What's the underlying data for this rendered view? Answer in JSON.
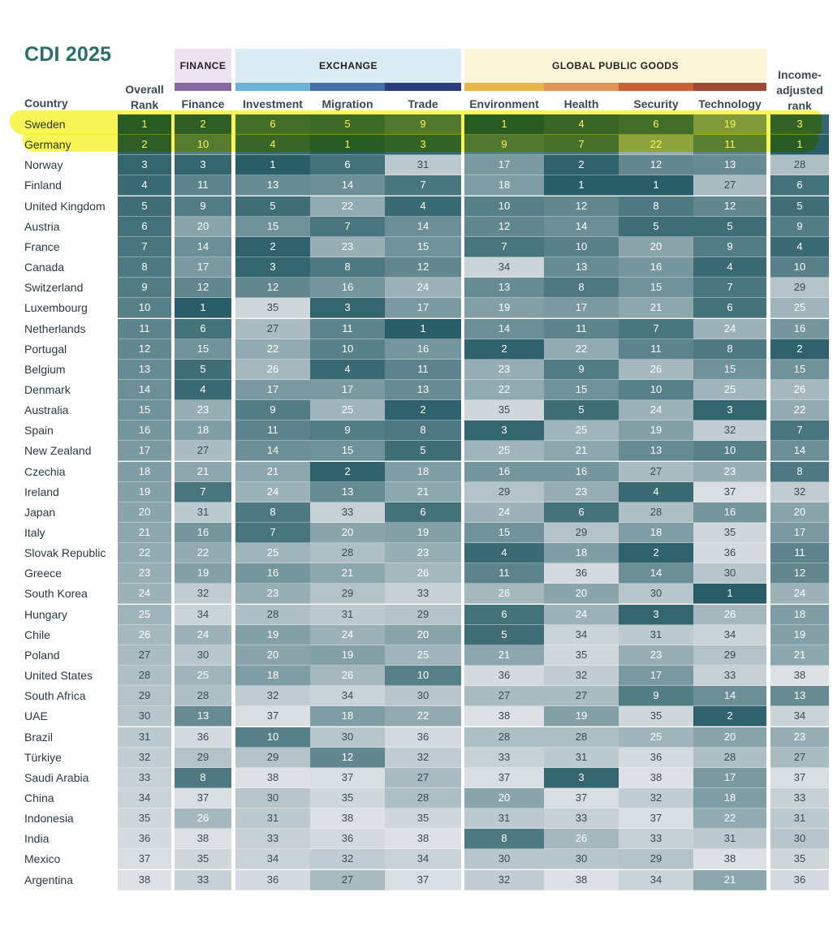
{
  "title": "CDI 2025",
  "groups": [
    {
      "label": "FINANCE",
      "bg": "#ede2ef",
      "strip": "#866a9f"
    },
    {
      "label": "EXCHANGE",
      "bg": "#dbecf4"
    },
    {
      "label": "GLOBAL PUBLIC GOODS",
      "bg": "#fdf5d8"
    }
  ],
  "strip_colors": {
    "investment": "#6db1d6",
    "migration": "#4470a6",
    "trade": "#2b3d7a",
    "environment": "#e5b64e",
    "health": "#dd9458",
    "security": "#c86138",
    "technology": "#9c4a36"
  },
  "country_header": "Country",
  "columns": [
    {
      "key": "overall",
      "label": "Overall Rank"
    },
    {
      "key": "finance",
      "label": "Finance"
    },
    {
      "key": "investment",
      "label": "Investment"
    },
    {
      "key": "migration",
      "label": "Migration"
    },
    {
      "key": "trade",
      "label": "Trade"
    },
    {
      "key": "environment",
      "label": "Environment"
    },
    {
      "key": "health",
      "label": "Health"
    },
    {
      "key": "security",
      "label": "Security"
    },
    {
      "key": "technology",
      "label": "Technology"
    },
    {
      "key": "income",
      "label": "Income-adjusted rank"
    }
  ],
  "rows": [
    {
      "country": "Sweden",
      "ranks": [
        1,
        2,
        6,
        5,
        9,
        1,
        4,
        6,
        19,
        3
      ]
    },
    {
      "country": "Germany",
      "ranks": [
        2,
        10,
        4,
        1,
        3,
        9,
        7,
        22,
        11,
        1
      ]
    },
    {
      "country": "Norway",
      "ranks": [
        3,
        3,
        1,
        6,
        31,
        17,
        2,
        12,
        13,
        28
      ]
    },
    {
      "country": "Finland",
      "ranks": [
        4,
        11,
        13,
        14,
        7,
        18,
        1,
        1,
        27,
        6
      ]
    },
    {
      "country": "United Kingdom",
      "ranks": [
        5,
        9,
        5,
        22,
        4,
        10,
        12,
        8,
        12,
        5
      ]
    },
    {
      "country": "Austria",
      "ranks": [
        6,
        20,
        15,
        7,
        14,
        12,
        14,
        5,
        5,
        9
      ]
    },
    {
      "country": "France",
      "ranks": [
        7,
        14,
        2,
        23,
        15,
        7,
        10,
        20,
        9,
        4
      ]
    },
    {
      "country": "Canada",
      "ranks": [
        8,
        17,
        3,
        8,
        12,
        34,
        13,
        16,
        4,
        10
      ]
    },
    {
      "country": "Switzerland",
      "ranks": [
        9,
        12,
        12,
        16,
        24,
        13,
        8,
        15,
        7,
        29
      ]
    },
    {
      "country": "Luxembourg",
      "ranks": [
        10,
        1,
        35,
        3,
        17,
        19,
        17,
        21,
        6,
        25
      ]
    },
    {
      "country": "Netherlands",
      "ranks": [
        11,
        6,
        27,
        11,
        1,
        14,
        11,
        7,
        24,
        16
      ]
    },
    {
      "country": "Portugal",
      "ranks": [
        12,
        15,
        22,
        10,
        16,
        2,
        22,
        11,
        8,
        2
      ]
    },
    {
      "country": "Belgium",
      "ranks": [
        13,
        5,
        26,
        4,
        11,
        23,
        9,
        26,
        15,
        15
      ]
    },
    {
      "country": "Denmark",
      "ranks": [
        14,
        4,
        17,
        17,
        13,
        22,
        15,
        10,
        25,
        26
      ]
    },
    {
      "country": "Australia",
      "ranks": [
        15,
        23,
        9,
        25,
        2,
        35,
        5,
        24,
        3,
        22
      ]
    },
    {
      "country": "Spain",
      "ranks": [
        16,
        18,
        11,
        9,
        8,
        3,
        25,
        19,
        32,
        7
      ]
    },
    {
      "country": "New Zealand",
      "ranks": [
        17,
        27,
        14,
        15,
        5,
        25,
        21,
        13,
        10,
        14
      ]
    },
    {
      "country": "Czechia",
      "ranks": [
        18,
        21,
        21,
        2,
        18,
        16,
        16,
        27,
        23,
        8
      ]
    },
    {
      "country": "Ireland",
      "ranks": [
        19,
        7,
        24,
        13,
        21,
        29,
        23,
        4,
        37,
        32
      ]
    },
    {
      "country": "Japan",
      "ranks": [
        20,
        31,
        8,
        33,
        6,
        24,
        6,
        28,
        16,
        20
      ]
    },
    {
      "country": "Italy",
      "ranks": [
        21,
        16,
        7,
        20,
        19,
        15,
        29,
        18,
        35,
        17
      ]
    },
    {
      "country": "Slovak Republic",
      "ranks": [
        22,
        22,
        25,
        28,
        23,
        4,
        18,
        2,
        36,
        11
      ]
    },
    {
      "country": "Greece",
      "ranks": [
        23,
        19,
        16,
        21,
        26,
        11,
        36,
        14,
        30,
        12
      ]
    },
    {
      "country": "South Korea",
      "ranks": [
        24,
        32,
        23,
        29,
        33,
        26,
        20,
        30,
        1,
        24
      ]
    },
    {
      "country": "Hungary",
      "ranks": [
        25,
        34,
        28,
        31,
        29,
        6,
        24,
        3,
        26,
        18
      ]
    },
    {
      "country": "Chile",
      "ranks": [
        26,
        24,
        19,
        24,
        20,
        5,
        34,
        31,
        34,
        19
      ]
    },
    {
      "country": "Poland",
      "ranks": [
        27,
        30,
        20,
        19,
        25,
        21,
        35,
        23,
        29,
        21
      ]
    },
    {
      "country": "United States",
      "ranks": [
        28,
        25,
        18,
        26,
        10,
        36,
        32,
        17,
        33,
        38
      ]
    },
    {
      "country": "South Africa",
      "ranks": [
        29,
        28,
        32,
        34,
        30,
        27,
        27,
        9,
        14,
        13
      ]
    },
    {
      "country": "UAE",
      "ranks": [
        30,
        13,
        37,
        18,
        22,
        38,
        19,
        35,
        2,
        34
      ]
    },
    {
      "country": "Brazil",
      "ranks": [
        31,
        36,
        10,
        30,
        36,
        28,
        28,
        25,
        20,
        23
      ]
    },
    {
      "country": "Türkiye",
      "ranks": [
        32,
        29,
        29,
        12,
        32,
        33,
        31,
        36,
        28,
        27
      ]
    },
    {
      "country": "Saudi Arabia",
      "ranks": [
        33,
        8,
        38,
        37,
        27,
        37,
        3,
        38,
        17,
        37
      ]
    },
    {
      "country": "China",
      "ranks": [
        34,
        37,
        30,
        35,
        28,
        20,
        37,
        32,
        18,
        33
      ]
    },
    {
      "country": "Indonesia",
      "ranks": [
        35,
        26,
        31,
        38,
        35,
        31,
        33,
        37,
        22,
        31
      ]
    },
    {
      "country": "India",
      "ranks": [
        36,
        38,
        33,
        36,
        38,
        8,
        26,
        33,
        31,
        30
      ]
    },
    {
      "country": "Mexico",
      "ranks": [
        37,
        35,
        34,
        32,
        34,
        30,
        30,
        29,
        38,
        35
      ]
    },
    {
      "country": "Argentina",
      "ranks": [
        38,
        33,
        36,
        27,
        37,
        32,
        38,
        34,
        21,
        36
      ]
    }
  ],
  "highlight_color": "#f6f228"
}
